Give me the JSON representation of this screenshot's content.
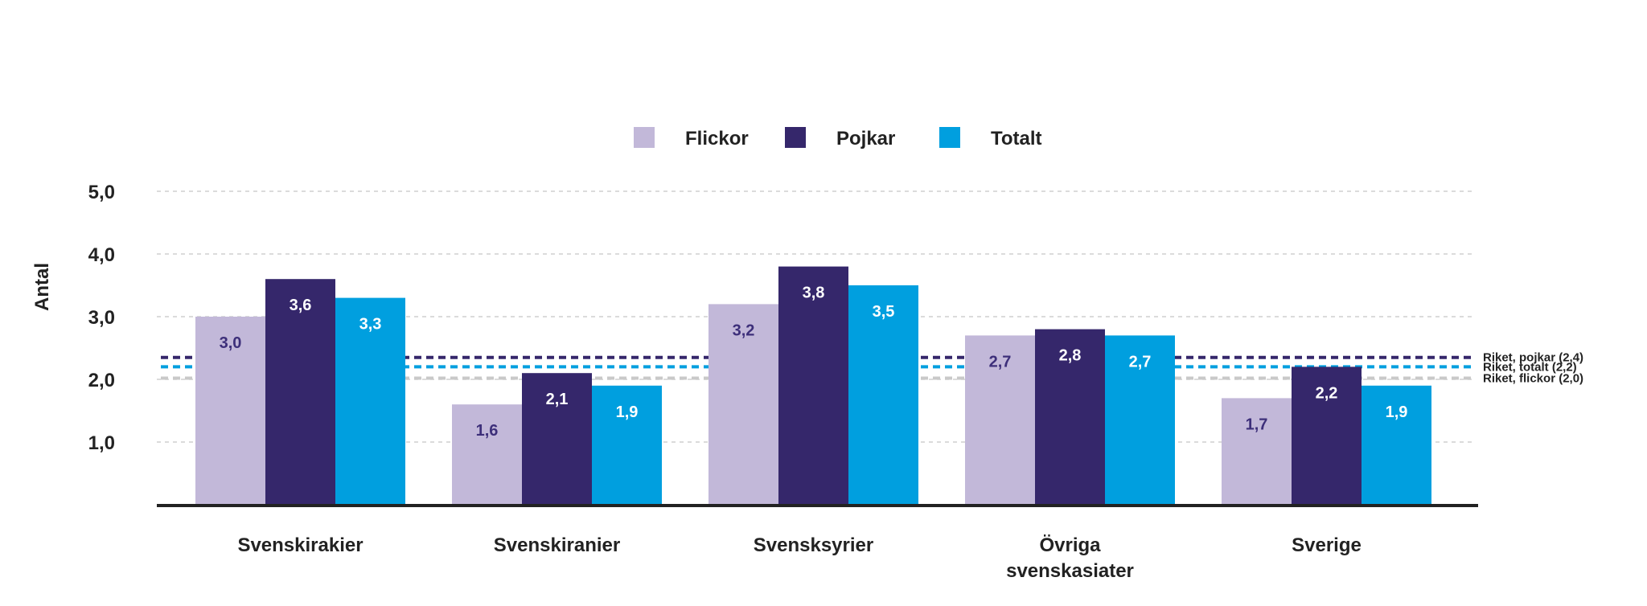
{
  "chart_data": {
    "type": "bar",
    "ylabel": "Antal",
    "ylim": [
      0,
      5
    ],
    "yticks": [
      1.0,
      2.0,
      3.0,
      4.0,
      5.0
    ],
    "ytick_labels": [
      "1,0",
      "2,0",
      "3,0",
      "4,0",
      "5,0"
    ],
    "grid": true,
    "legend_position": "top-center",
    "categories": [
      [
        "Svenskirakier"
      ],
      [
        "Svenskiranier"
      ],
      [
        "Svensksyrier"
      ],
      [
        "Övriga",
        "svenskasiater"
      ],
      [
        "Sverige"
      ]
    ],
    "series": [
      {
        "name": "Flickor",
        "color": "#c2b8d9",
        "label_color": "#3d2f7a",
        "values": [
          3.0,
          1.6,
          3.2,
          2.7,
          1.7
        ],
        "labels": [
          "3,0",
          "1,6",
          "3,2",
          "2,7",
          "1,7"
        ]
      },
      {
        "name": "Pojkar",
        "color": "#35276b",
        "label_color": "#ffffff",
        "values": [
          3.6,
          2.1,
          3.8,
          2.8,
          2.2
        ],
        "labels": [
          "3,6",
          "2,1",
          "3,8",
          "2,8",
          "2,2"
        ]
      },
      {
        "name": "Totalt",
        "color": "#009fdf",
        "label_color": "#ffffff",
        "values": [
          3.3,
          1.9,
          3.5,
          2.7,
          1.9
        ],
        "labels": [
          "3,3",
          "1,9",
          "3,5",
          "2,7",
          "1,9"
        ]
      }
    ],
    "reference_lines": [
      {
        "label": "Riket, pojkar (2,4)",
        "value": 2.35,
        "color": "#35276b"
      },
      {
        "label": "Riket, totalt (2,2)",
        "value": 2.2,
        "color": "#009fdf"
      },
      {
        "label": "Riket, flickor (2,0)",
        "value": 2.02,
        "color": "#c9c9c9"
      }
    ]
  }
}
